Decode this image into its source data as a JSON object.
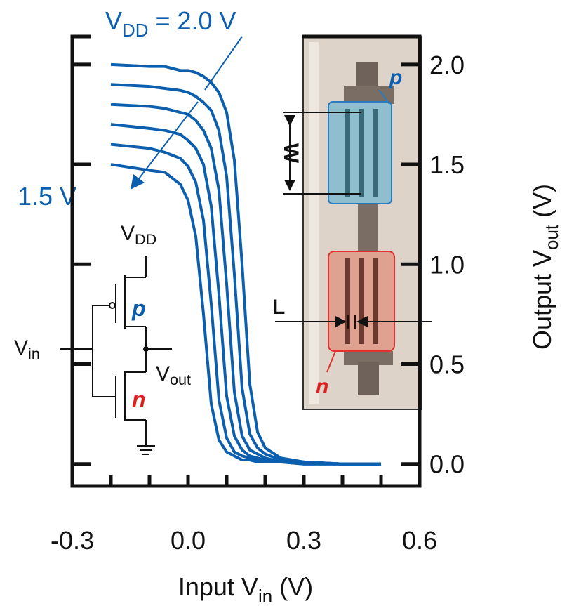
{
  "chart_data": {
    "type": "line",
    "x_label": [
      "Input V",
      "in",
      " (V)"
    ],
    "y_label": [
      "Output V",
      "out",
      " (V)"
    ],
    "x": [
      -0.2,
      -0.1,
      -0.06,
      -0.02,
      0,
      0.02,
      0.04,
      0.06,
      0.08,
      0.1,
      0.12,
      0.14,
      0.16,
      0.18,
      0.2,
      0.24,
      0.3,
      0.4,
      0.5
    ],
    "series": [
      {
        "color": "#0b5fae",
        "values": [
          1.5,
          1.47,
          1.46,
          1.4,
          1.32,
          1.14,
          0.75,
          0.3,
          0.12,
          0.06,
          0.04,
          0.02,
          0.02,
          0.01,
          0.01,
          0.01,
          0,
          0,
          0
        ]
      },
      {
        "color": "#0b5fae",
        "values": [
          1.6,
          1.58,
          1.56,
          1.53,
          1.49,
          1.41,
          1.22,
          0.8,
          0.32,
          0.13,
          0.06,
          0.04,
          0.03,
          0.02,
          0.01,
          0.01,
          0,
          0,
          0
        ]
      },
      {
        "color": "#0b5fae",
        "values": [
          1.7,
          1.68,
          1.67,
          1.65,
          1.62,
          1.58,
          1.5,
          1.29,
          0.85,
          0.34,
          0.14,
          0.07,
          0.04,
          0.03,
          0.02,
          0.01,
          0.01,
          0,
          0
        ]
      },
      {
        "color": "#0b5fae",
        "values": [
          1.8,
          1.79,
          1.78,
          1.76,
          1.75,
          1.72,
          1.67,
          1.58,
          1.37,
          0.9,
          0.36,
          0.14,
          0.07,
          0.05,
          0.03,
          0.01,
          0.01,
          0,
          0
        ]
      },
      {
        "color": "#0b5fae",
        "values": [
          1.9,
          1.89,
          1.88,
          1.87,
          1.86,
          1.84,
          1.81,
          1.77,
          1.67,
          1.44,
          0.95,
          0.38,
          0.15,
          0.08,
          0.05,
          0.02,
          0.01,
          0,
          0
        ]
      },
      {
        "color": "#0b5fae",
        "values": [
          2.0,
          1.99,
          1.99,
          1.97,
          1.97,
          1.96,
          1.94,
          1.91,
          1.86,
          1.76,
          1.52,
          1.0,
          0.4,
          0.16,
          0.08,
          0.03,
          0.01,
          0,
          0
        ]
      }
    ],
    "xlim": [
      -0.3,
      0.6
    ],
    "xticks": [
      -0.3,
      {
        "value": 0,
        "label": "0.0"
      },
      0.3,
      0.6
    ],
    "xminorticks": [
      -0.2,
      -0.1,
      0.1,
      0.2,
      0.4,
      0.5
    ],
    "ylim": [
      -0.11,
      2.14
    ],
    "yticks": [
      {
        "value": 0,
        "label": "0.0"
      },
      0.5,
      {
        "value": 1,
        "label": "1.0"
      },
      1.5,
      {
        "value": 2,
        "label": "2.0"
      }
    ],
    "annotations": {
      "vdd_max": [
        "V",
        "DD",
        " = 2.0 V"
      ],
      "vdd_min": "1.5 V",
      "circuit_vdd": [
        "V",
        "DD"
      ],
      "circuit_p": "p",
      "circuit_n": "n",
      "circuit_vin": [
        "V",
        "in"
      ],
      "circuit_vout": [
        "V",
        "out"
      ],
      "inset_p": "p",
      "inset_n": "n",
      "inset_w": "W",
      "inset_l": "L"
    }
  }
}
